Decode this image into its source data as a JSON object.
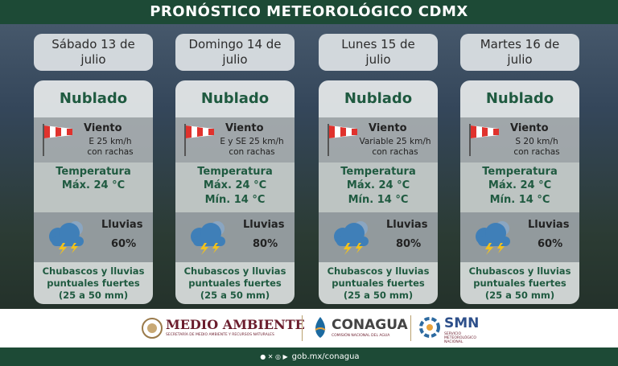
{
  "header": {
    "title": "PRONÓSTICO METEOROLÓGICO CDMX"
  },
  "days": [
    {
      "date": [
        "Sábado 13 de",
        "julio"
      ],
      "condition": "Nublado",
      "wind_label": "Viento",
      "wind": [
        "E 25 km/h",
        "con rachas"
      ],
      "temperature_label": "Temperatura",
      "temperatures": [
        "Máx. 24 °C"
      ],
      "rain_label": "Lluvias",
      "rain_probability": "60%",
      "rain_description": [
        "Chubascos y lluvias",
        "puntuales fuertes",
        "(25 a 50 mm)"
      ]
    },
    {
      "date": [
        "Domingo 14 de",
        "julio"
      ],
      "condition": "Nublado",
      "wind_label": "Viento",
      "wind": [
        "E  y SE 25 km/h",
        "con rachas"
      ],
      "temperature_label": "Temperatura",
      "temperatures": [
        "Máx. 24 °C",
        "Mín. 14 °C"
      ],
      "rain_label": "Lluvias",
      "rain_probability": "80%",
      "rain_description": [
        "Chubascos y lluvias",
        "puntuales fuertes",
        "(25 a 50 mm)"
      ]
    },
    {
      "date": [
        "Lunes 15 de",
        "julio"
      ],
      "condition": "Nublado",
      "wind_label": "Viento",
      "wind": [
        "Variable 25 km/h",
        "con rachas"
      ],
      "temperature_label": "Temperatura",
      "temperatures": [
        "Máx. 24 °C",
        "Mín. 14 °C"
      ],
      "rain_label": "Lluvias",
      "rain_probability": "80%",
      "rain_description": [
        "Chubascos y lluvias",
        "puntuales fuertes",
        "(25 a 50 mm)"
      ]
    },
    {
      "date": [
        "Martes 16 de",
        "julio"
      ],
      "condition": "Nublado",
      "wind_label": "Viento",
      "wind": [
        "S 20 km/h",
        "con rachas"
      ],
      "temperature_label": "Temperatura",
      "temperatures": [
        "Máx. 24 °C",
        "Mín. 14 °C"
      ],
      "rain_label": "Lluvias",
      "rain_probability": "60%",
      "rain_description": [
        "Chubascos y lluvias",
        "puntuales fuertes",
        "(25 a 50 mm)"
      ]
    }
  ],
  "footer": {
    "semarnat": "MEDIO AMBIENTE",
    "semarnat_sub": "SECRETARÍA DE MEDIO AMBIENTE Y RECURSOS NATURALES",
    "conagua": "CONAGUA",
    "conagua_sub": "COMISIÓN NACIONAL DEL AGUA",
    "smn": "SMN",
    "smn_sub": "SERVICIO METEOROLÓGICO NACIONAL",
    "url": "gob.mx/conagua"
  }
}
